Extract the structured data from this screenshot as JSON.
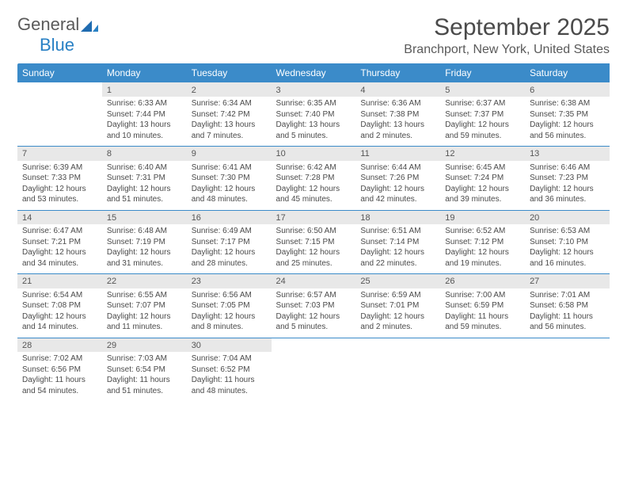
{
  "logo": {
    "text1": "General",
    "text2": "Blue",
    "text_color": "#5a5a5a",
    "blue_color": "#2880c4",
    "icon_fill": "#1f6bb0"
  },
  "title": "September 2025",
  "location": "Branchport, New York, United States",
  "colors": {
    "header_bg": "#3b8bc9",
    "header_text": "#ffffff",
    "date_bg": "#e8e8e8",
    "date_text": "#555555",
    "body_text": "#4a4a4a",
    "divider": "#3b8bc9",
    "page_bg": "#ffffff"
  },
  "day_headers": [
    "Sunday",
    "Monday",
    "Tuesday",
    "Wednesday",
    "Thursday",
    "Friday",
    "Saturday"
  ],
  "weeks": [
    {
      "dates": [
        "",
        "1",
        "2",
        "3",
        "4",
        "5",
        "6"
      ],
      "cells": [
        "",
        "Sunrise: 6:33 AM\nSunset: 7:44 PM\nDaylight: 13 hours and 10 minutes.",
        "Sunrise: 6:34 AM\nSunset: 7:42 PM\nDaylight: 13 hours and 7 minutes.",
        "Sunrise: 6:35 AM\nSunset: 7:40 PM\nDaylight: 13 hours and 5 minutes.",
        "Sunrise: 6:36 AM\nSunset: 7:38 PM\nDaylight: 13 hours and 2 minutes.",
        "Sunrise: 6:37 AM\nSunset: 7:37 PM\nDaylight: 12 hours and 59 minutes.",
        "Sunrise: 6:38 AM\nSunset: 7:35 PM\nDaylight: 12 hours and 56 minutes."
      ]
    },
    {
      "dates": [
        "7",
        "8",
        "9",
        "10",
        "11",
        "12",
        "13"
      ],
      "cells": [
        "Sunrise: 6:39 AM\nSunset: 7:33 PM\nDaylight: 12 hours and 53 minutes.",
        "Sunrise: 6:40 AM\nSunset: 7:31 PM\nDaylight: 12 hours and 51 minutes.",
        "Sunrise: 6:41 AM\nSunset: 7:30 PM\nDaylight: 12 hours and 48 minutes.",
        "Sunrise: 6:42 AM\nSunset: 7:28 PM\nDaylight: 12 hours and 45 minutes.",
        "Sunrise: 6:44 AM\nSunset: 7:26 PM\nDaylight: 12 hours and 42 minutes.",
        "Sunrise: 6:45 AM\nSunset: 7:24 PM\nDaylight: 12 hours and 39 minutes.",
        "Sunrise: 6:46 AM\nSunset: 7:23 PM\nDaylight: 12 hours and 36 minutes."
      ]
    },
    {
      "dates": [
        "14",
        "15",
        "16",
        "17",
        "18",
        "19",
        "20"
      ],
      "cells": [
        "Sunrise: 6:47 AM\nSunset: 7:21 PM\nDaylight: 12 hours and 34 minutes.",
        "Sunrise: 6:48 AM\nSunset: 7:19 PM\nDaylight: 12 hours and 31 minutes.",
        "Sunrise: 6:49 AM\nSunset: 7:17 PM\nDaylight: 12 hours and 28 minutes.",
        "Sunrise: 6:50 AM\nSunset: 7:15 PM\nDaylight: 12 hours and 25 minutes.",
        "Sunrise: 6:51 AM\nSunset: 7:14 PM\nDaylight: 12 hours and 22 minutes.",
        "Sunrise: 6:52 AM\nSunset: 7:12 PM\nDaylight: 12 hours and 19 minutes.",
        "Sunrise: 6:53 AM\nSunset: 7:10 PM\nDaylight: 12 hours and 16 minutes."
      ]
    },
    {
      "dates": [
        "21",
        "22",
        "23",
        "24",
        "25",
        "26",
        "27"
      ],
      "cells": [
        "Sunrise: 6:54 AM\nSunset: 7:08 PM\nDaylight: 12 hours and 14 minutes.",
        "Sunrise: 6:55 AM\nSunset: 7:07 PM\nDaylight: 12 hours and 11 minutes.",
        "Sunrise: 6:56 AM\nSunset: 7:05 PM\nDaylight: 12 hours and 8 minutes.",
        "Sunrise: 6:57 AM\nSunset: 7:03 PM\nDaylight: 12 hours and 5 minutes.",
        "Sunrise: 6:59 AM\nSunset: 7:01 PM\nDaylight: 12 hours and 2 minutes.",
        "Sunrise: 7:00 AM\nSunset: 6:59 PM\nDaylight: 11 hours and 59 minutes.",
        "Sunrise: 7:01 AM\nSunset: 6:58 PM\nDaylight: 11 hours and 56 minutes."
      ]
    },
    {
      "dates": [
        "28",
        "29",
        "30",
        "",
        "",
        "",
        ""
      ],
      "cells": [
        "Sunrise: 7:02 AM\nSunset: 6:56 PM\nDaylight: 11 hours and 54 minutes.",
        "Sunrise: 7:03 AM\nSunset: 6:54 PM\nDaylight: 11 hours and 51 minutes.",
        "Sunrise: 7:04 AM\nSunset: 6:52 PM\nDaylight: 11 hours and 48 minutes.",
        "",
        "",
        "",
        ""
      ]
    }
  ]
}
